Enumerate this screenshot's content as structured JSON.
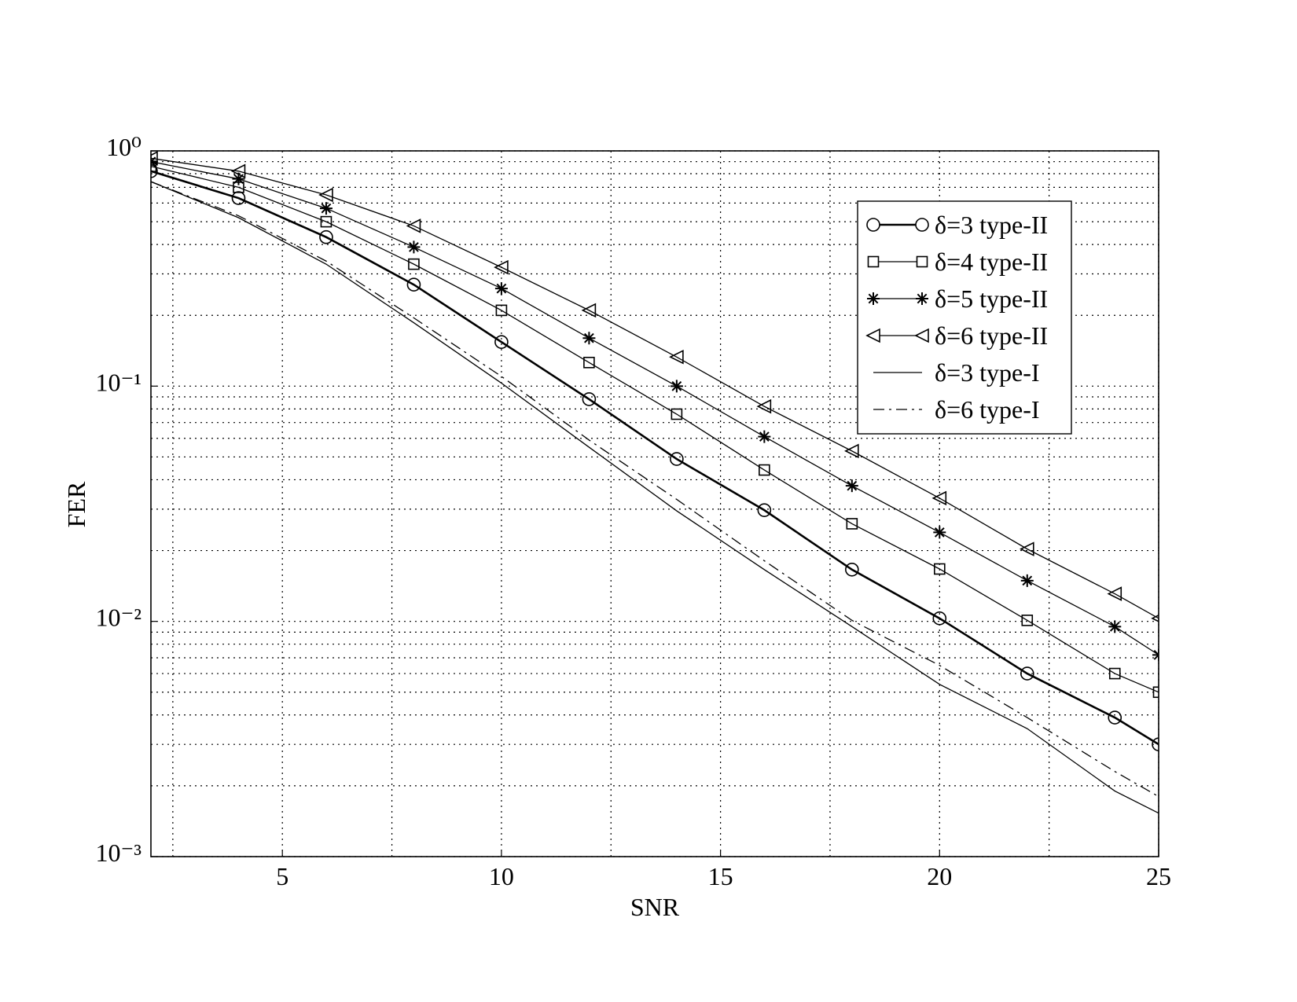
{
  "chart_data": {
    "type": "line",
    "x_label": "SNR",
    "y_label": "FER",
    "x": [
      2,
      4,
      6,
      8,
      10,
      12,
      14,
      16,
      18,
      20,
      22,
      24,
      25
    ],
    "xlim": [
      2,
      25
    ],
    "xticks": [
      5,
      10,
      15,
      20,
      25
    ],
    "xminorticks": [
      2.5,
      7.5,
      12.5,
      17.5,
      22.5
    ],
    "ylim": [
      0.001,
      1
    ],
    "yscale": "log",
    "yticks": [
      {
        "value": 0.001,
        "label": "10⁻³"
      },
      {
        "value": 0.01,
        "label": "10⁻²"
      },
      {
        "value": 0.1,
        "label": "10⁻¹"
      },
      {
        "value": 1,
        "label": "10⁰"
      }
    ],
    "grid": true,
    "legend": "upper right",
    "series": [
      {
        "name": "δ=3 type-II",
        "color": "#000000",
        "marker": "circle",
        "linestyle": "solid",
        "linewidth": 2.6,
        "values": [
          0.82,
          0.63,
          0.43,
          0.27,
          0.154,
          0.088,
          0.049,
          0.0297,
          0.0166,
          0.0103,
          0.006,
          0.0039,
          0.003
        ]
      },
      {
        "name": "δ=4 type-II",
        "color": "#000000",
        "marker": "square",
        "linestyle": "solid",
        "linewidth": 1.3,
        "values": [
          0.86,
          0.7,
          0.5,
          0.33,
          0.21,
          0.126,
          0.076,
          0.044,
          0.026,
          0.0167,
          0.0101,
          0.006,
          0.005
        ]
      },
      {
        "name": "δ=5 type-II",
        "color": "#000000",
        "marker": "star",
        "linestyle": "solid",
        "linewidth": 1.3,
        "values": [
          0.9,
          0.76,
          0.57,
          0.39,
          0.26,
          0.16,
          0.1,
          0.061,
          0.0377,
          0.0239,
          0.0149,
          0.0095,
          0.0072
        ]
      },
      {
        "name": "δ=6 type-II",
        "color": "#000000",
        "marker": "triangle-left",
        "linestyle": "solid",
        "linewidth": 1.3,
        "values": [
          0.93,
          0.82,
          0.65,
          0.48,
          0.32,
          0.21,
          0.133,
          0.082,
          0.053,
          0.0334,
          0.0203,
          0.0131,
          0.0103
        ]
      },
      {
        "name": "δ=3 type-I",
        "color": "#000000",
        "marker": "none",
        "linestyle": "solid",
        "linewidth": 1.3,
        "values": [
          0.74,
          0.52,
          0.33,
          0.186,
          0.103,
          0.055,
          0.0295,
          0.0166,
          0.0095,
          0.0054,
          0.0035,
          0.0019,
          0.00153
        ]
      },
      {
        "name": "δ=6 type-I",
        "color": "#000000",
        "marker": "none",
        "linestyle": "dashdot",
        "linewidth": 1.3,
        "values": [
          0.74,
          0.53,
          0.34,
          0.195,
          0.11,
          0.059,
          0.033,
          0.0181,
          0.0101,
          0.0065,
          0.0039,
          0.0023,
          0.0018
        ]
      }
    ]
  }
}
